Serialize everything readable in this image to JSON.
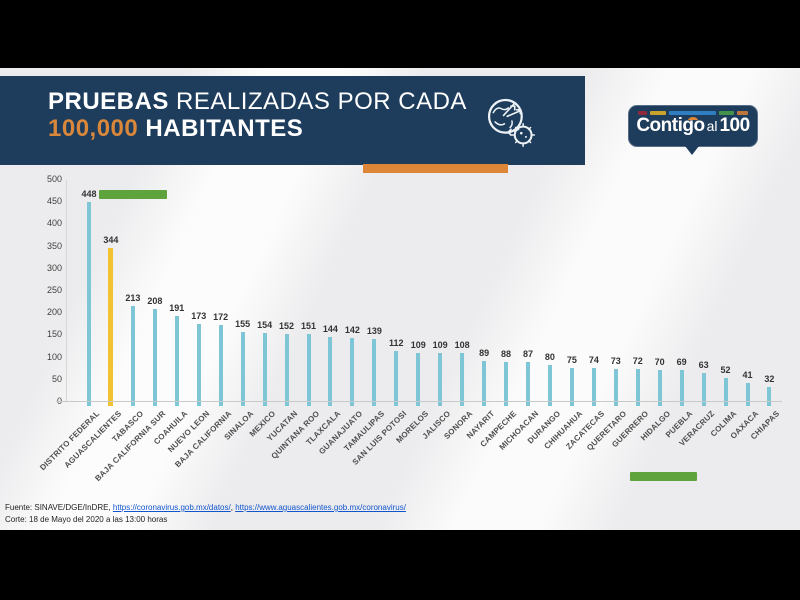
{
  "header": {
    "title_bold": "PRUEBAS",
    "title_rest": " REALIZADAS POR CADA",
    "title_line2_number": "100,000",
    "title_line2_text": " HABITANTES",
    "band_color": "#1E3D5C",
    "accent_bar_color": "#DD8637",
    "number_color": "#D9873B",
    "icon": "globe-virus-icon"
  },
  "logo": {
    "part1": "Contigo",
    "part2": "al",
    "part3": "100",
    "bubble_color": "#1E3D5C",
    "dash_colors": [
      "#8E2A3C",
      "#C9A22B",
      "#2F7EC2",
      "#43944A",
      "#C0763B"
    ],
    "dash_widths": [
      10,
      16,
      50,
      16,
      12
    ]
  },
  "chart_data": {
    "type": "bar",
    "title": "PRUEBAS REALIZADAS POR CADA 100,000 HABITANTES",
    "xlabel": "",
    "ylabel": "",
    "ylim": [
      0,
      500
    ],
    "yticks": [
      0,
      50,
      100,
      150,
      200,
      250,
      300,
      350,
      400,
      450,
      500
    ],
    "grid": false,
    "legend": "none",
    "bar_color": "#7EC5D6",
    "highlight_color": "#F1C232",
    "highlight_index": 1,
    "categories": [
      "DISTRITO FEDERAL",
      "AGUASCALIENTES",
      "TABASCO",
      "BAJA CALIFORNIA SUR",
      "COAHUILA",
      "NUEVO LEON",
      "BAJA CALIFORNIA",
      "SINALOA",
      "MEXICO",
      "YUCATAN",
      "QUINTANA ROO",
      "TLAXCALA",
      "GUANAJUATO",
      "TAMAULIPAS",
      "SAN LUIS POTOSI",
      "MORELOS",
      "JALISCO",
      "SONORA",
      "NAYARIT",
      "CAMPECHE",
      "MICHOACAN",
      "DURANGO",
      "CHIHUAHUA",
      "ZACATECAS",
      "QUERETARO",
      "GUERRERO",
      "HIDALGO",
      "PUEBLA",
      "VERACRUZ",
      "COLIMA",
      "OAXACA",
      "CHIAPAS"
    ],
    "values": [
      448,
      344,
      213,
      208,
      191,
      173,
      172,
      155,
      154,
      152,
      151,
      144,
      142,
      139,
      112,
      109,
      109,
      108,
      89,
      88,
      87,
      80,
      75,
      74,
      73,
      72,
      70,
      69,
      63,
      52,
      41,
      32
    ]
  },
  "annotations": {
    "green_marker_color": "#5FA33C"
  },
  "footer": {
    "source_prefix": "Fuente: SINAVE/DGE/InDRE, ",
    "link1": "https://coronavirus.gob.mx/datos/",
    "separator": ", ",
    "link2": "https://www.aguascalientes.gob.mx/coronavirus/",
    "cutoff": "Corte: 18 de Mayo del 2020 a las 13:00 horas"
  }
}
